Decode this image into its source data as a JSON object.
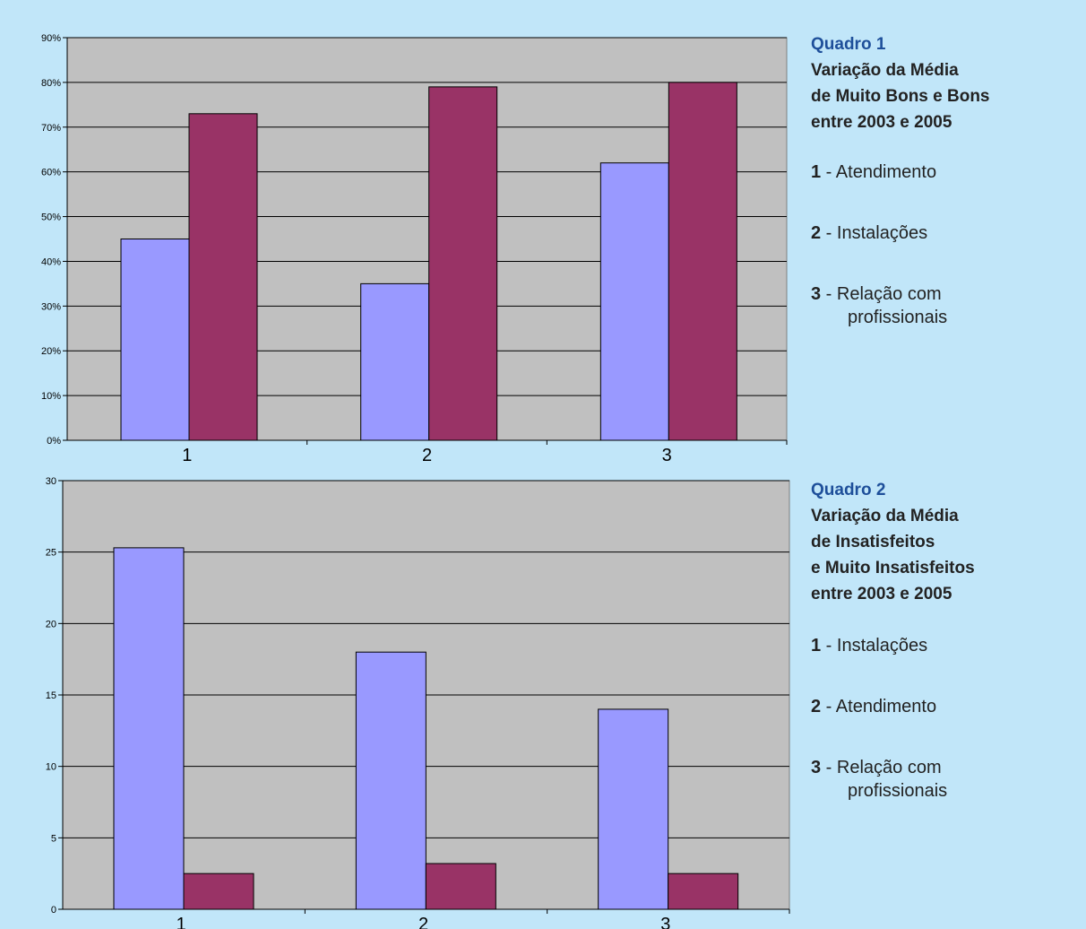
{
  "chart_data": [
    {
      "type": "bar",
      "categories": [
        "1",
        "2",
        "3"
      ],
      "series": [
        {
          "values": [
            45,
            35,
            62
          ],
          "color": "#9999ff"
        },
        {
          "values": [
            73,
            79,
            80
          ],
          "color": "#993366"
        }
      ],
      "ylim": [
        0,
        90
      ],
      "yticks": [
        "0%",
        "10%",
        "20%",
        "30%",
        "40%",
        "50%",
        "60%",
        "70%",
        "80%",
        "90%"
      ],
      "grid": true,
      "plot_bg": "#c0c0c0"
    },
    {
      "type": "bar",
      "categories": [
        "1",
        "2",
        "3"
      ],
      "series": [
        {
          "values": [
            25.3,
            18,
            14
          ],
          "color": "#9999ff"
        },
        {
          "values": [
            2.5,
            3.2,
            2.5
          ],
          "color": "#993366"
        }
      ],
      "ylim": [
        0,
        30
      ],
      "yticks": [
        "0",
        "5",
        "10",
        "15",
        "20",
        "25",
        "30"
      ],
      "grid": true,
      "plot_bg": "#c0c0c0"
    }
  ],
  "captions": [
    {
      "title": "Quadro 1",
      "lines": [
        "Variação da Média",
        "de Muito Bons e Bons",
        "entre 2003 e 2005"
      ],
      "items": [
        {
          "num": "1",
          "text": " - Atendimento"
        },
        {
          "num": "2",
          "text": " - Instalações"
        },
        {
          "num": "3",
          "text": " - Relação com",
          "cont": "profissionais"
        }
      ]
    },
    {
      "title": "Quadro 2",
      "lines": [
        "Variação da Média",
        "de Insatisfeitos",
        "e Muito Insatisfeitos",
        "entre 2003 e 2005"
      ],
      "items": [
        {
          "num": "1",
          "text": " - Instalações"
        },
        {
          "num": "2",
          "text": " - Atendimento"
        },
        {
          "num": "3",
          "text": " - Relação com",
          "cont": "profissionais"
        }
      ]
    }
  ]
}
